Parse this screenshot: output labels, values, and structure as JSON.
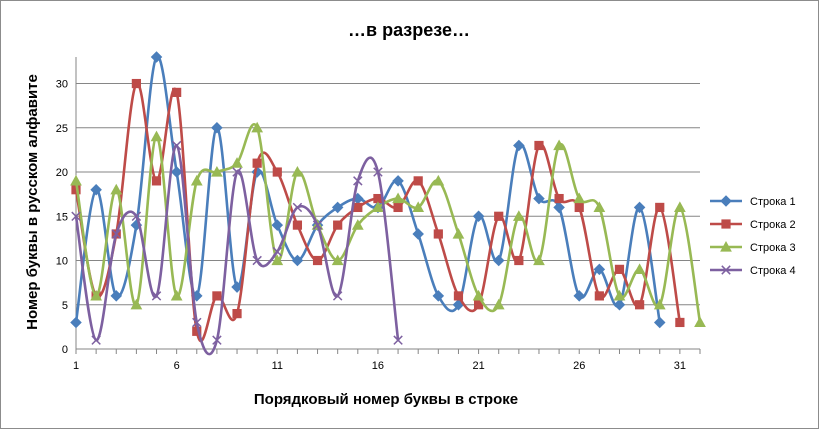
{
  "chart_data": {
    "type": "line",
    "title": "…в разрезе…",
    "xlabel": "Порядковый номер буквы в строке",
    "ylabel": "Номер буквы в русском алфавите",
    "xlim": [
      1,
      32
    ],
    "ylim": [
      0,
      33
    ],
    "x_ticks": [
      1,
      6,
      11,
      16,
      21,
      26,
      31
    ],
    "y_ticks": [
      0,
      5,
      10,
      15,
      20,
      25,
      30
    ],
    "grid": true,
    "smooth": true,
    "legend_position": "right",
    "series": [
      {
        "name": "Строка 1",
        "color": "#4a7ebb",
        "marker": "diamond",
        "x": [
          1,
          2,
          3,
          4,
          5,
          6,
          7,
          8,
          9,
          10,
          11,
          12,
          13,
          14,
          15,
          16,
          17,
          18,
          19,
          20,
          21,
          22,
          23,
          24,
          25,
          26,
          27,
          28,
          29,
          30
        ],
        "values": [
          3,
          18,
          6,
          14,
          33,
          20,
          6,
          25,
          7,
          20,
          14,
          10,
          14,
          16,
          17,
          16,
          19,
          13,
          6,
          5,
          15,
          10,
          23,
          17,
          16,
          6,
          9,
          5,
          16,
          3
        ]
      },
      {
        "name": "Строка 2",
        "color": "#be4b48",
        "marker": "square",
        "x": [
          1,
          2,
          3,
          4,
          5,
          6,
          7,
          8,
          9,
          10,
          11,
          12,
          13,
          14,
          15,
          16,
          17,
          18,
          19,
          20,
          21,
          22,
          23,
          24,
          25,
          26,
          27,
          28,
          29,
          30,
          31
        ],
        "values": [
          18,
          6,
          13,
          30,
          19,
          29,
          2,
          6,
          4,
          21,
          20,
          14,
          10,
          14,
          16,
          17,
          16,
          19,
          13,
          6,
          5,
          15,
          10,
          23,
          17,
          16,
          6,
          9,
          5,
          16,
          3
        ]
      },
      {
        "name": "Строка 3",
        "color": "#98b954",
        "marker": "triangle",
        "x": [
          1,
          2,
          3,
          4,
          5,
          6,
          7,
          8,
          9,
          10,
          11,
          12,
          13,
          14,
          15,
          16,
          17,
          18,
          19,
          20,
          21,
          22,
          23,
          24,
          25,
          26,
          27,
          28,
          29,
          30,
          31,
          32
        ],
        "values": [
          19,
          6,
          18,
          5,
          24,
          6,
          19,
          20,
          21,
          25,
          10,
          20,
          14,
          10,
          14,
          16,
          17,
          16,
          19,
          13,
          6,
          5,
          15,
          10,
          23,
          17,
          16,
          6,
          9,
          5,
          16,
          3
        ]
      },
      {
        "name": "Строка 4",
        "color": "#7d60a0",
        "marker": "x",
        "x": [
          1,
          2,
          3,
          4,
          5,
          6,
          7,
          8,
          9,
          10,
          11,
          12,
          13,
          14,
          15,
          16,
          17
        ],
        "values": [
          15,
          1,
          13,
          15,
          6,
          23,
          3,
          1,
          20,
          10,
          11,
          16,
          14,
          6,
          19,
          20,
          1
        ]
      }
    ]
  }
}
